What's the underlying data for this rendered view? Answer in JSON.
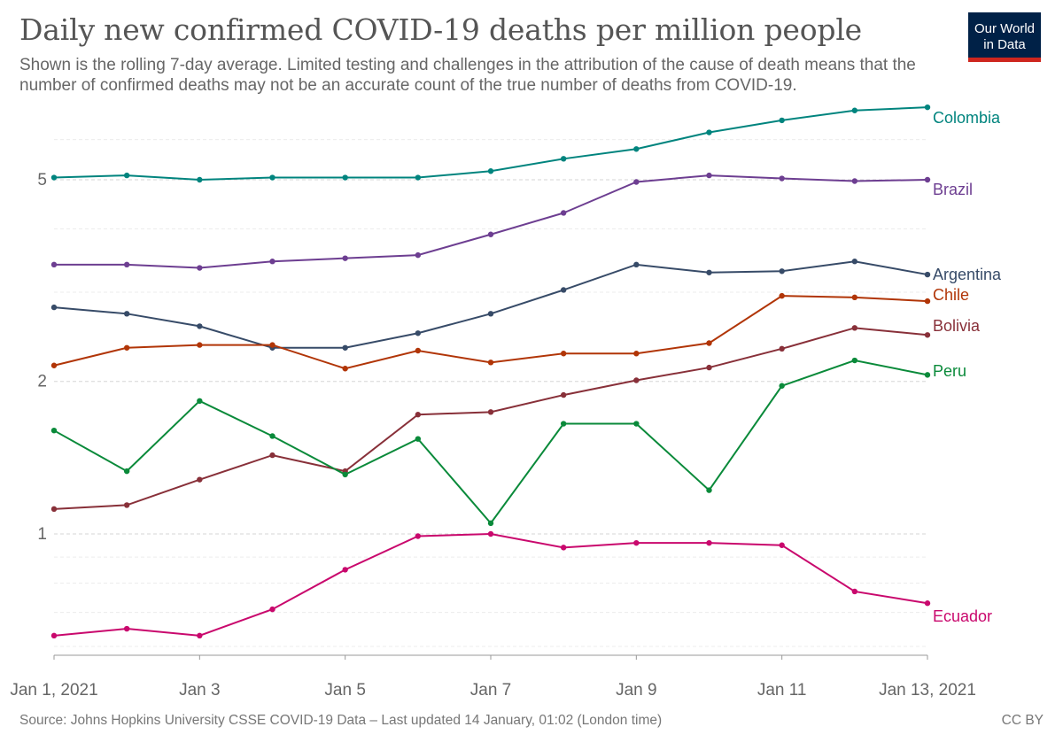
{
  "header": {
    "title": "Daily new confirmed COVID-19 deaths per million people",
    "subtitle": "Shown is the rolling 7-day average. Limited testing and challenges in the attribution of the cause of death means that the number of confirmed deaths may not be an accurate count of the true number of deaths from COVID-19."
  },
  "logo": {
    "line1": "Our World",
    "line2": "in Data",
    "bg_color": "#002147",
    "accent_color": "#ce261e"
  },
  "footer": {
    "source": "Source: Johns Hopkins University CSSE COVID-19 Data – Last updated 14 January, 01:02 (London time)",
    "license": "CC BY"
  },
  "chart_data": {
    "type": "line",
    "title": "Daily new confirmed COVID-19 deaths per million people",
    "y_scale": "log",
    "ylim": [
      0.6,
      6.5
    ],
    "y_ticks": [
      1,
      2,
      5
    ],
    "grid": true,
    "legend": "inline-right",
    "x": [
      "Jan 1, 2021",
      "Jan 2, 2021",
      "Jan 3, 2021",
      "Jan 4, 2021",
      "Jan 5, 2021",
      "Jan 6, 2021",
      "Jan 7, 2021",
      "Jan 8, 2021",
      "Jan 9, 2021",
      "Jan 10, 2021",
      "Jan 11, 2021",
      "Jan 12, 2021",
      "Jan 13, 2021"
    ],
    "x_tick_labels": [
      "Jan 1, 2021",
      "Jan 3",
      "Jan 5",
      "Jan 7",
      "Jan 9",
      "Jan 11",
      "Jan 13, 2021"
    ],
    "x_tick_indices": [
      0,
      2,
      4,
      6,
      8,
      10,
      12
    ],
    "series": [
      {
        "name": "Colombia",
        "color": "#00847e",
        "values": [
          5.05,
          5.1,
          5.0,
          5.05,
          5.05,
          5.05,
          5.2,
          5.5,
          5.75,
          6.2,
          6.55,
          6.85,
          6.95
        ]
      },
      {
        "name": "Brazil",
        "color": "#6d3e91",
        "values": [
          3.4,
          3.4,
          3.35,
          3.45,
          3.5,
          3.55,
          3.9,
          4.3,
          4.95,
          5.1,
          5.03,
          4.97,
          5.0
        ]
      },
      {
        "name": "Argentina",
        "color": "#374b68",
        "values": [
          2.8,
          2.72,
          2.57,
          2.33,
          2.33,
          2.49,
          2.72,
          3.03,
          3.4,
          3.28,
          3.3,
          3.45,
          3.25
        ]
      },
      {
        "name": "Chile",
        "color": "#b13507",
        "values": [
          2.15,
          2.33,
          2.36,
          2.36,
          2.12,
          2.3,
          2.18,
          2.27,
          2.27,
          2.38,
          2.95,
          2.93,
          2.88
        ]
      },
      {
        "name": "Bolivia",
        "color": "#883039",
        "values": [
          1.12,
          1.14,
          1.28,
          1.43,
          1.33,
          1.72,
          1.74,
          1.88,
          2.01,
          2.13,
          2.32,
          2.55,
          2.47
        ]
      },
      {
        "name": "Peru",
        "color": "#0a8a3a",
        "values": [
          1.6,
          1.33,
          1.83,
          1.56,
          1.31,
          1.54,
          1.05,
          1.65,
          1.65,
          1.22,
          1.96,
          2.2,
          2.06
        ]
      },
      {
        "name": "Ecuador",
        "color": "#c9086d",
        "values": [
          0.63,
          0.65,
          0.63,
          0.71,
          0.85,
          0.99,
          1.0,
          0.94,
          0.96,
          0.96,
          0.95,
          0.77,
          0.73
        ]
      }
    ]
  }
}
